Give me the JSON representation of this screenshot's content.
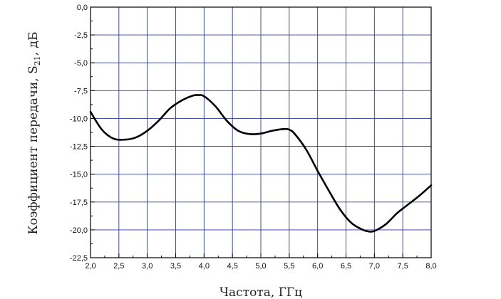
{
  "chart_data": {
    "type": "line",
    "xlabel": "Частота, ГГц",
    "ylabel_main": "Коэффициент передачи, S",
    "ylabel_sub": "21",
    "ylabel_tail": ", дБ",
    "xlim": [
      2.0,
      8.0
    ],
    "ylim": [
      -22.5,
      0.0
    ],
    "grid": true,
    "x_ticks": [
      "2,0",
      "2,5",
      "3,0",
      "3,5",
      "4,0",
      "4,5",
      "5,0",
      "5,5",
      "6,0",
      "6,5",
      "7,0",
      "7,5",
      "8,0"
    ],
    "y_ticks": [
      "0,0",
      "-2,5",
      "-5,0",
      "-7,5",
      "-10,0",
      "-12,5",
      "-15,0",
      "-17,5",
      "-20,0",
      "-22,5"
    ],
    "series": [
      {
        "color": "#000000",
        "x": [
          2.0,
          2.2,
          2.4,
          2.6,
          2.8,
          3.0,
          3.2,
          3.4,
          3.6,
          3.8,
          3.9,
          4.0,
          4.2,
          4.4,
          4.6,
          4.8,
          5.0,
          5.2,
          5.4,
          5.5,
          5.6,
          5.8,
          6.0,
          6.2,
          6.4,
          6.6,
          6.8,
          6.9,
          7.0,
          7.2,
          7.4,
          7.6,
          7.8,
          8.0
        ],
        "y": [
          -9.4,
          -11.0,
          -11.8,
          -11.9,
          -11.7,
          -11.1,
          -10.2,
          -9.1,
          -8.4,
          -7.95,
          -7.9,
          -8.0,
          -8.9,
          -10.2,
          -11.1,
          -11.4,
          -11.35,
          -11.1,
          -10.95,
          -11.0,
          -11.4,
          -12.8,
          -14.7,
          -16.5,
          -18.2,
          -19.4,
          -20.0,
          -20.15,
          -20.1,
          -19.5,
          -18.5,
          -17.7,
          -16.9,
          -16.0
        ]
      }
    ]
  }
}
